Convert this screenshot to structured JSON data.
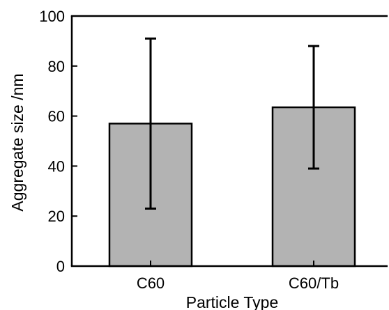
{
  "chart_data": {
    "type": "bar",
    "title": "",
    "xlabel": "Particle Type",
    "ylabel": "Aggregate size /nm",
    "categories": [
      "C60",
      "C60/Tb"
    ],
    "values": [
      57,
      63.5
    ],
    "error_low": [
      23,
      39
    ],
    "error_high": [
      91,
      88
    ],
    "ylim": [
      0,
      100
    ],
    "yticks": [
      0,
      20,
      40,
      60,
      80,
      100
    ],
    "grid": false,
    "legend": "none",
    "bar_color": "#b3b3b3",
    "edge_color": "#000000"
  }
}
